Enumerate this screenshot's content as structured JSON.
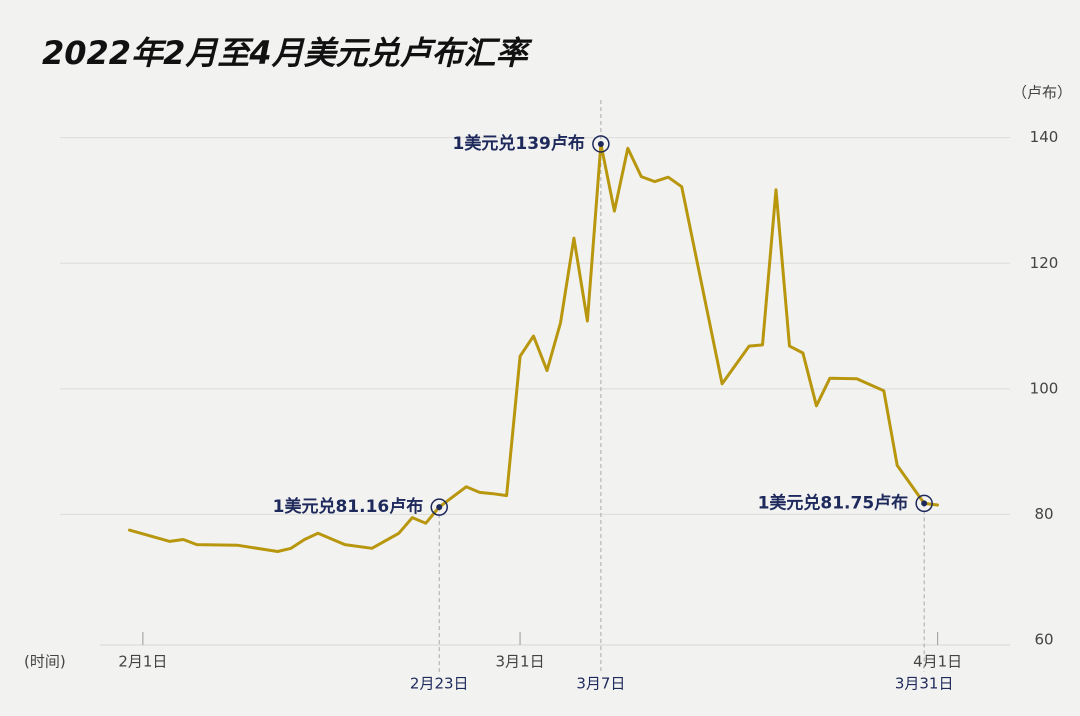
{
  "chart_data": {
    "type": "line",
    "title": "2022年2月至4月美元兑卢布汇率",
    "y_unit_label": "（卢布）",
    "x_unit_label": "(时间)",
    "x": [
      "2022-01-31",
      "2022-02-03",
      "2022-02-04",
      "2022-02-05",
      "2022-02-08",
      "2022-02-11",
      "2022-02-12",
      "2022-02-13",
      "2022-02-14",
      "2022-02-16",
      "2022-02-18",
      "2022-02-20",
      "2022-02-21",
      "2022-02-22",
      "2022-02-23",
      "2022-02-25",
      "2022-02-26",
      "2022-02-27",
      "2022-02-28",
      "2022-03-01",
      "2022-03-02",
      "2022-03-03",
      "2022-03-04",
      "2022-03-05",
      "2022-03-06",
      "2022-03-07",
      "2022-03-08",
      "2022-03-09",
      "2022-03-10",
      "2022-03-11",
      "2022-03-12",
      "2022-03-13",
      "2022-03-16",
      "2022-03-18",
      "2022-03-19",
      "2022-03-20",
      "2022-03-21",
      "2022-03-22",
      "2022-03-23",
      "2022-03-24",
      "2022-03-26",
      "2022-03-28",
      "2022-03-29",
      "2022-03-31",
      "2022-04-01"
    ],
    "series": [
      {
        "color": "#b8970f",
        "values": [
          77.5,
          75.7,
          76.0,
          75.2,
          75.1,
          74.1,
          74.6,
          76.0,
          77.0,
          75.2,
          74.6,
          77.0,
          79.5,
          78.6,
          81.16,
          84.4,
          83.5,
          83.3,
          83.0,
          105.2,
          108.4,
          102.9,
          110.5,
          124.0,
          110.8,
          139,
          128.3,
          138.3,
          133.8,
          133.0,
          133.7,
          132.2,
          100.8,
          106.8,
          107.0,
          131.7,
          106.8,
          105.7,
          97.3,
          101.7,
          101.6,
          99.7,
          87.8,
          81.75,
          81.5
        ]
      }
    ],
    "xlim": [
      "2022-01-28",
      "2022-04-06"
    ],
    "xticks": [
      {
        "value": "2022-02-01",
        "label": "2月1日"
      },
      {
        "value": "2022-03-01",
        "label": "3月1日"
      },
      {
        "value": "2022-04-01",
        "label": "4月1日"
      }
    ],
    "ylim": [
      60,
      146
    ],
    "yticks": [
      60,
      80,
      100,
      120,
      140
    ],
    "grid": true,
    "annotations": [
      {
        "x": "2022-02-23",
        "y": 81.16,
        "text": "1美元兑81.16卢布",
        "date_label": "2月23日"
      },
      {
        "x": "2022-03-07",
        "y": 139,
        "text": "1美元兑139卢布",
        "date_label": "3月7日"
      },
      {
        "x": "2022-03-31",
        "y": 81.75,
        "text": "1美元兑81.75卢布",
        "date_label": "3月31日"
      }
    ]
  }
}
